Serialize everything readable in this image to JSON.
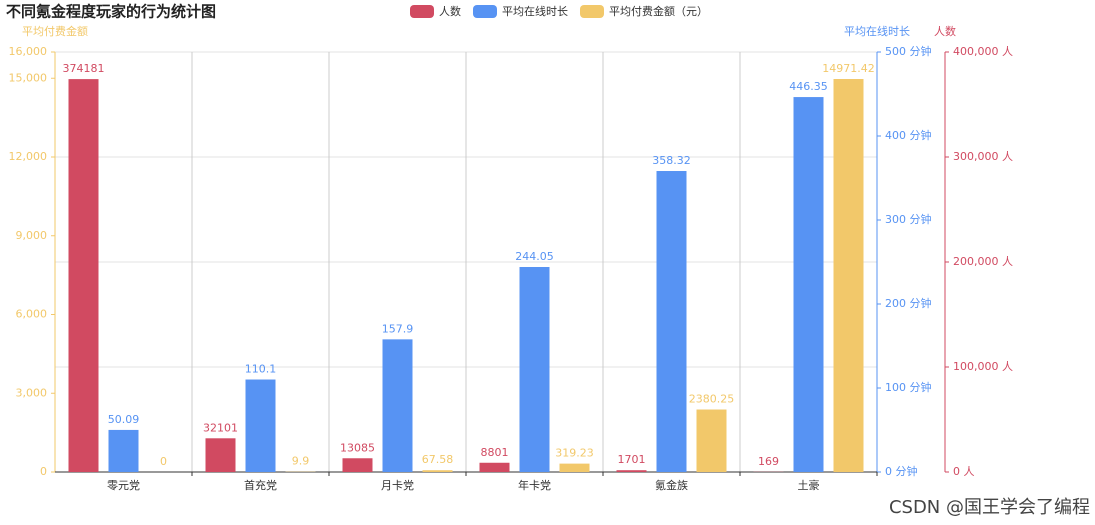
{
  "chart_data": {
    "type": "bar",
    "title": "不同氪金程度玩家的行为统计图",
    "watermark": "CSDN @国王学会了编程",
    "categories": [
      "零元党",
      "首充党",
      "月卡党",
      "年卡党",
      "氪金族",
      "土豪"
    ],
    "series": [
      {
        "name": "人数",
        "color": "#d14a61",
        "axis": "y3",
        "values": [
          374181,
          32101,
          13085,
          8801,
          1701,
          169
        ]
      },
      {
        "name": "平均在线时长",
        "color": "#5793f3",
        "axis": "y2",
        "values": [
          50.09,
          110.1,
          157.9,
          244.05,
          358.32,
          446.35
        ]
      },
      {
        "name": "平均付费金额（元）",
        "color": "#f2c86a",
        "axis": "y",
        "values": [
          0,
          9.9,
          67.58,
          319.23,
          2380.25,
          14971.42
        ]
      }
    ],
    "ylabel": "平均付费金额",
    "ycolor": "#f2c86a",
    "ylim": [
      0,
      16000
    ],
    "yticks": [
      0,
      {
        "value": 3000,
        "label": "3,000"
      },
      {
        "value": 6000,
        "label": "6,000"
      },
      {
        "value": 9000,
        "label": "9,000"
      },
      {
        "value": 12000,
        "label": "12,000"
      },
      {
        "value": 15000,
        "label": "15,000"
      },
      {
        "value": 16000,
        "label": "16,000"
      }
    ],
    "y2label": "平均在线时长",
    "y2color": "#5793f3",
    "y2lim": [
      0,
      500
    ],
    "y2ticks": [
      {
        "value": 0,
        "label": "0 分钟"
      },
      {
        "value": 100,
        "label": "100 分钟"
      },
      {
        "value": 200,
        "label": "200 分钟"
      },
      {
        "value": 300,
        "label": "300 分钟"
      },
      {
        "value": 400,
        "label": "400 分钟"
      },
      {
        "value": 500,
        "label": "500 分钟"
      }
    ],
    "y3label": "人数",
    "y3color": "#d14a61",
    "y3lim": [
      0,
      400000
    ],
    "y3ticks": [
      {
        "value": 0,
        "label": "0 人"
      },
      {
        "value": 100000,
        "label": "100,000 人"
      },
      {
        "value": 200000,
        "label": "200,000 人"
      },
      {
        "value": 300000,
        "label": "300,000 人"
      },
      {
        "value": 400000,
        "label": "400,000 人"
      }
    ],
    "grid": true
  }
}
